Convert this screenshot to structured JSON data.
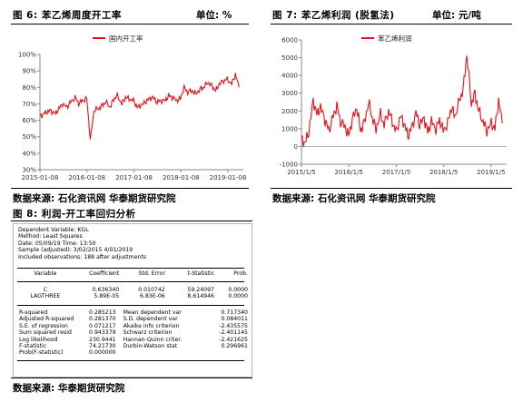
{
  "fig6": {
    "title": "图 6:  苯乙烯周度开工率",
    "unit": "单位:  %",
    "source": "数据来源:  石化资讯网  华泰期货研究院",
    "legend": "国内开工率"
  },
  "fig7": {
    "title": "图 7:  苯乙烯利润 (脱氢法)",
    "unit": "单位:  元/吨",
    "source": "数据来源:  石化资讯网  华泰期货研究院",
    "legend": "苯乙烯利润"
  },
  "fig8": {
    "title": "图 8:  利润-开工率回归分析",
    "source": "数据来源:  华泰期货研究院",
    "header_lines": [
      "Dependent Variable: KGL",
      "Method: Least Squares",
      "Date: 05/09/19   Time: 13:50",
      "Sample (adjusted): 3/02/2015 4/01/2019",
      "Included observations: 188 after adjustments"
    ],
    "columns": [
      "Variable",
      "Coefficient",
      "Std. Error",
      "t-Statistic",
      "Prob."
    ],
    "rows": [
      [
        "C",
        "0.636340",
        "0.010742",
        "59.24097",
        "0.0000"
      ],
      [
        "LAGTHREE",
        "5.89E-05",
        "6.83E-06",
        "8.614946",
        "0.0000"
      ]
    ],
    "stats": [
      [
        "R-squared",
        "0.285213",
        "Mean dependent var",
        "0.717340"
      ],
      [
        "Adjusted R-squared",
        "0.281370",
        "S.D. dependent var",
        "0.084011"
      ],
      [
        "S.E. of regression",
        "0.071217",
        "Akaike info criterion",
        "-2.435575"
      ],
      [
        "Sum squared resid",
        "0.943379",
        "Schwarz criterion",
        "-2.401145"
      ],
      [
        "Log likelihood",
        "230.9441",
        "Hannan-Quinn criter.",
        "-2.421625"
      ],
      [
        "F-statistic",
        "74.21730",
        "Durbin-Watson stat",
        "0.296961"
      ],
      [
        "Prob(F-statistic)",
        "0.000000",
        "",
        ""
      ]
    ]
  },
  "chart_data": [
    {
      "type": "line",
      "series": [
        {
          "name": "国内开工率",
          "color": "#e8111b",
          "x": [
            "2015-01-08",
            "2015-02-05",
            "2015-03-05",
            "2015-04-02",
            "2015-05-07",
            "2015-06-04",
            "2015-07-02",
            "2015-08-06",
            "2015-09-03",
            "2015-10-08",
            "2015-11-05",
            "2015-12-03",
            "2016-01-07",
            "2016-02-04",
            "2016-03-03",
            "2016-04-07",
            "2016-05-05",
            "2016-06-02",
            "2016-07-07",
            "2016-08-04",
            "2016-09-01",
            "2016-10-06",
            "2016-11-03",
            "2016-12-01",
            "2017-01-05",
            "2017-02-02",
            "2017-03-02",
            "2017-04-06",
            "2017-05-04",
            "2017-06-01",
            "2017-07-06",
            "2017-08-03",
            "2017-09-07",
            "2017-10-05",
            "2017-11-02",
            "2017-12-07",
            "2018-01-04",
            "2018-02-01",
            "2018-03-01",
            "2018-04-05",
            "2018-05-03",
            "2018-06-07",
            "2018-07-05",
            "2018-08-02",
            "2018-09-06",
            "2018-10-04",
            "2018-11-01",
            "2018-12-06",
            "2019-01-03",
            "2019-02-07",
            "2019-03-07",
            "2019-04-04"
          ],
          "values": [
            62,
            64,
            65,
            66,
            64,
            67,
            70,
            68,
            71,
            74,
            70,
            72,
            73,
            48,
            66,
            67,
            69,
            71,
            68,
            73,
            75,
            70,
            74,
            73,
            72,
            68,
            69,
            71,
            73,
            74,
            71,
            72,
            72,
            75,
            74,
            72,
            73,
            80,
            77,
            78,
            76,
            79,
            80,
            83,
            81,
            78,
            82,
            84,
            85,
            82,
            88,
            80
          ]
        }
      ],
      "xticks": [
        "2015-01-08",
        "2016-01-08",
        "2017-01-08",
        "2018-01-08",
        "2019-01-08"
      ],
      "yticks": [
        "30%",
        "40%",
        "50%",
        "60%",
        "70%",
        "80%",
        "90%",
        "100%"
      ],
      "ylim": [
        0.3,
        1.0
      ],
      "legend_position": "top"
    },
    {
      "type": "line",
      "series": [
        {
          "name": "苯乙烯利润",
          "color": "#e8111b",
          "x": [
            "2015-01-05",
            "2015-02-02",
            "2015-03-02",
            "2015-04-06",
            "2015-05-04",
            "2015-06-01",
            "2015-07-06",
            "2015-08-03",
            "2015-09-07",
            "2015-10-05",
            "2015-11-02",
            "2015-12-07",
            "2016-01-04",
            "2016-02-01",
            "2016-03-07",
            "2016-04-04",
            "2016-05-02",
            "2016-06-06",
            "2016-07-04",
            "2016-08-01",
            "2016-09-05",
            "2016-10-03",
            "2016-11-07",
            "2016-12-05",
            "2017-01-02",
            "2017-02-06",
            "2017-03-06",
            "2017-04-03",
            "2017-05-01",
            "2017-06-05",
            "2017-07-03",
            "2017-08-07",
            "2017-09-04",
            "2017-10-02",
            "2017-11-06",
            "2017-12-04",
            "2018-01-01",
            "2018-02-05",
            "2018-03-05",
            "2018-04-02",
            "2018-05-07",
            "2018-06-04",
            "2018-07-02",
            "2018-08-06",
            "2018-09-03",
            "2018-10-01",
            "2018-11-05",
            "2018-12-03",
            "2019-01-07",
            "2019-02-04",
            "2019-03-04",
            "2019-04-01"
          ],
          "values": [
            400,
            200,
            800,
            2600,
            1800,
            2200,
            1500,
            900,
            1700,
            2300,
            1400,
            1100,
            600,
            1500,
            2200,
            900,
            1300,
            2500,
            1600,
            1000,
            1800,
            1200,
            2000,
            1400,
            800,
            1700,
            1300,
            600,
            1000,
            1900,
            1200,
            1600,
            800,
            1400,
            1000,
            1500,
            900,
            1300,
            2200,
            1700,
            2600,
            3200,
            5200,
            2400,
            3000,
            2000,
            1400,
            900,
            1300,
            1000,
            2600,
            1300
          ],
          "markers_start": [
            -200,
            0
          ]
        }
      ],
      "xticks": [
        "2015/1/5",
        "2016/1/5",
        "2017/1/5",
        "2018/1/5",
        "2019/1/5"
      ],
      "yticks": [
        "-1000",
        "0",
        "1000",
        "2000",
        "3000",
        "4000",
        "5000",
        "6000"
      ],
      "ylim": [
        -1000,
        6000
      ],
      "legend_position": "top"
    }
  ]
}
